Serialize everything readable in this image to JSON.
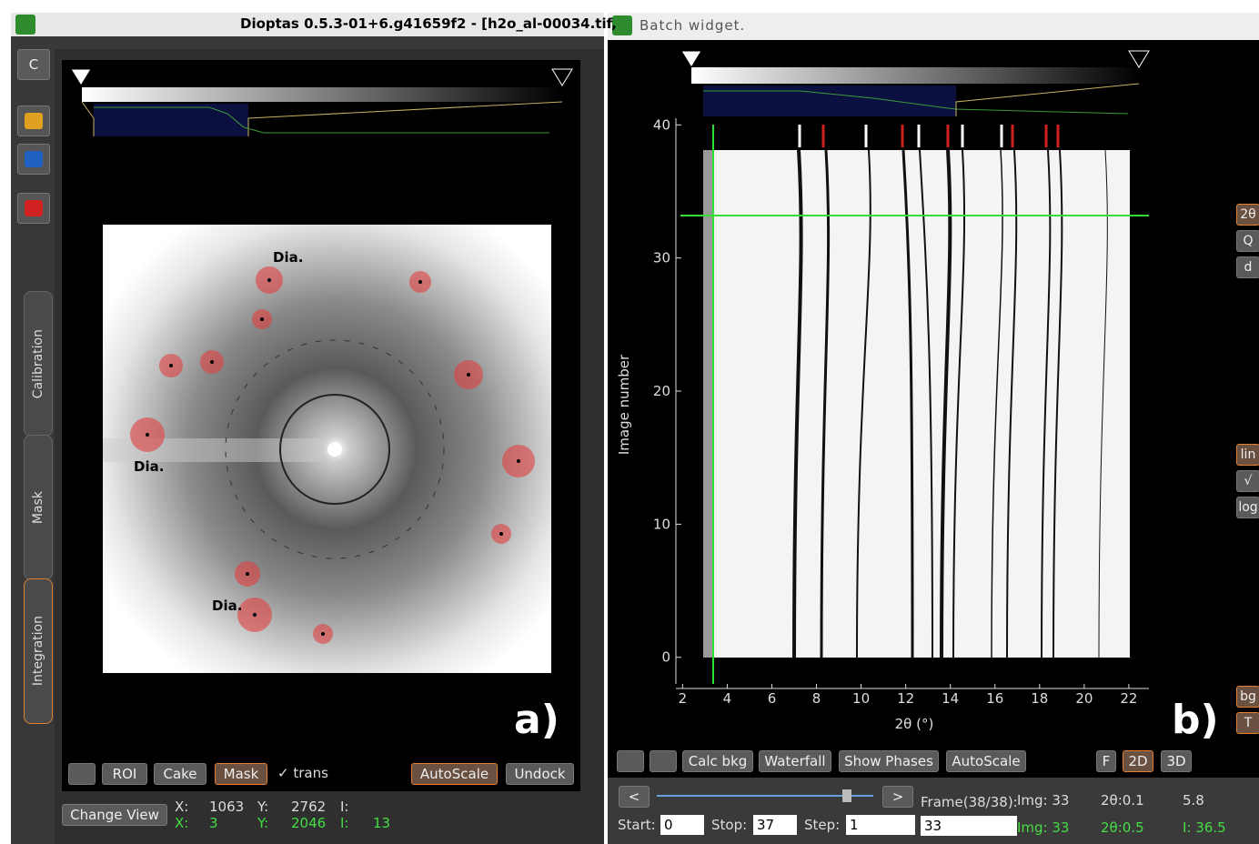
{
  "left_window": {
    "title": "Dioptas 0.5.3-01+6.g41659f2 - [h2o_al-00034.tif,",
    "sidebar_button": "C",
    "tabs": [
      "Calibration",
      "Mask",
      "Integration"
    ],
    "image_labels": [
      "Dia.",
      "Dia.",
      "Dia."
    ],
    "panel_label": "a)",
    "toolbar": [
      "ROI",
      "Cake",
      "Mask"
    ],
    "trans": "✓ trans",
    "toolbar_right": [
      "AutoScale",
      "Undock"
    ],
    "change_view": "Change View",
    "status_top": [
      "X:",
      "1063",
      "Y:",
      "2762",
      "I:"
    ],
    "status_bottom": [
      "X:",
      "3",
      "Y:",
      "2046",
      "I:",
      "13"
    ]
  },
  "right_window": {
    "title": "Batch widget.",
    "plot": {
      "ylabel": "Image number",
      "xlabel": "2θ (°)",
      "xlim": [
        1.7,
        22.9
      ],
      "xticks": [
        2,
        4,
        6,
        8,
        10,
        12,
        14,
        16,
        18,
        20,
        22
      ],
      "ylim": [
        -2,
        40.5
      ],
      "yticks": [
        0,
        10,
        20,
        30,
        40
      ]
    },
    "side_buttons": [
      "2θ",
      "Q",
      "d",
      "lin",
      "√",
      "log",
      "bg",
      "T"
    ],
    "panel_label": "b)",
    "toolbar": [
      "Calc bkg",
      "Waterfall",
      "Show Phases",
      "AutoScale"
    ],
    "view_buttons": [
      "F",
      "2D",
      "3D"
    ],
    "nav": [
      "<",
      ">"
    ],
    "frame": "Frame(38/38):",
    "info_top": [
      "Img: 33",
      "2θ:0.1",
      "5.8"
    ],
    "info_bottom": [
      "Img: 33",
      "2θ:0.5",
      "I: 36.5"
    ],
    "start_label": "Start:",
    "start": "0",
    "stop_label": "Stop:",
    "stop": "37",
    "step_label": "Step:",
    "step": "1",
    "image_input": "33"
  }
}
